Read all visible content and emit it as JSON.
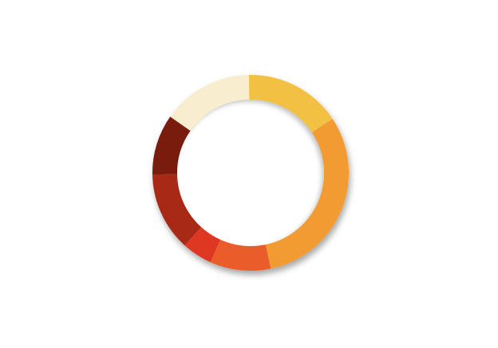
{
  "chart_data": {
    "type": "pie",
    "donut": true,
    "legend": "none",
    "slices": [
      {
        "value": 16,
        "color": "#F2C043"
      },
      {
        "value": 31,
        "color": "#F29B33"
      },
      {
        "value": 10,
        "color": "#EA5C29"
      },
      {
        "value": 5,
        "color": "#DE3924"
      },
      {
        "value": 13,
        "color": "#A82A18"
      },
      {
        "value": 10,
        "color": "#7A1B10"
      },
      {
        "value": 15,
        "color": "#F8EDCF"
      }
    ]
  }
}
